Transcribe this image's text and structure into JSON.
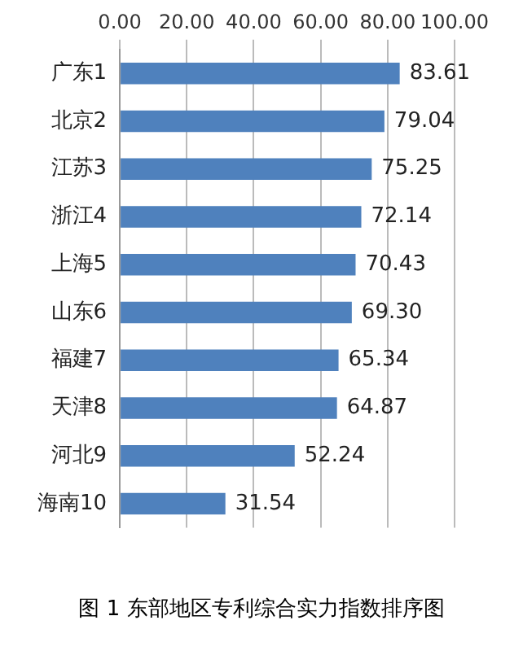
{
  "chart_data": {
    "type": "bar",
    "orientation": "horizontal",
    "categories": [
      "广东1",
      "北京2",
      "江苏3",
      "浙江4",
      "上海5",
      "山东6",
      "福建7",
      "天津8",
      "河北9",
      "海南10"
    ],
    "values": [
      83.61,
      79.04,
      75.25,
      72.14,
      70.43,
      69.3,
      65.34,
      64.87,
      52.24,
      31.54
    ],
    "value_labels": [
      "83.61",
      "79.04",
      "75.25",
      "72.14",
      "70.43",
      "69.30",
      "65.34",
      "64.87",
      "52.24",
      "31.54"
    ],
    "color": "#4f81bd",
    "xlim": [
      0,
      100
    ],
    "xticks": [
      {
        "value": 0,
        "label": "0.00"
      },
      {
        "value": 20,
        "label": "20.00"
      },
      {
        "value": 40,
        "label": "40.00"
      },
      {
        "value": 60,
        "label": "60.00"
      },
      {
        "value": 80,
        "label": "80.00"
      },
      {
        "value": 100,
        "label": "100.00"
      }
    ],
    "grid": "x",
    "legend": false,
    "annotations": [
      "图 1 东部地区专利综合实力指数排序图"
    ]
  }
}
